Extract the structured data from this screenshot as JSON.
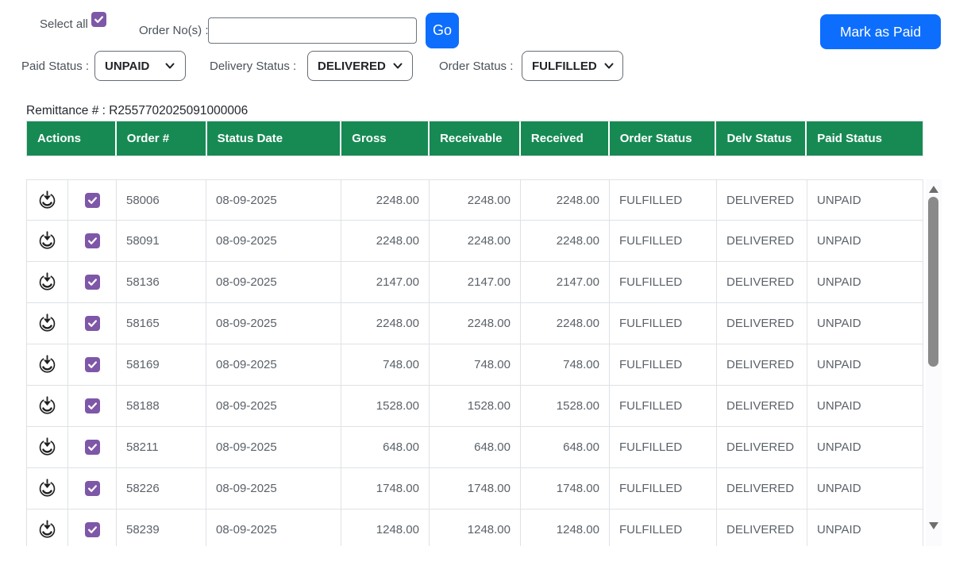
{
  "colors": {
    "header_green": "#178a53",
    "accent_purple": "#7e57a8",
    "primary_blue": "#0d6efd"
  },
  "toolbar": {
    "select_all_label": "Select all",
    "select_all_checked": true,
    "order_no_label": "Order No(s) :",
    "order_no_value": "",
    "go_label": "Go",
    "mark_paid_label": "Mark as Paid"
  },
  "filters": {
    "paid_status_label": "Paid Status :",
    "paid_status_value": "UNPAID",
    "delivery_status_label": "Delivery Status :",
    "delivery_status_value": "DELIVERED",
    "order_status_label": "Order Status :",
    "order_status_value": "FULFILLED"
  },
  "remittance_line": "Remittance # : R2557702025091000006",
  "icons": {
    "action_icon": "receive-download-icon",
    "checkbox_icon": "check-icon",
    "dropdown_icon": "chevron-down-icon",
    "scroll_up": "triangle-up-icon",
    "scroll_down": "triangle-down-icon"
  },
  "table": {
    "headers": [
      "Actions",
      "Order #",
      "Status Date",
      "Gross",
      "Receivable",
      "Received",
      "Order Status",
      "Delv Status",
      "Paid Status"
    ],
    "rows": [
      {
        "checked": true,
        "order_no": "58006",
        "status_date": "08-09-2025",
        "gross": "2248.00",
        "receivable": "2248.00",
        "received": "2248.00",
        "order_status": "FULFILLED",
        "delv_status": "DELIVERED",
        "paid_status": "UNPAID"
      },
      {
        "checked": true,
        "order_no": "58091",
        "status_date": "08-09-2025",
        "gross": "2248.00",
        "receivable": "2248.00",
        "received": "2248.00",
        "order_status": "FULFILLED",
        "delv_status": "DELIVERED",
        "paid_status": "UNPAID"
      },
      {
        "checked": true,
        "order_no": "58136",
        "status_date": "08-09-2025",
        "gross": "2147.00",
        "receivable": "2147.00",
        "received": "2147.00",
        "order_status": "FULFILLED",
        "delv_status": "DELIVERED",
        "paid_status": "UNPAID"
      },
      {
        "checked": true,
        "order_no": "58165",
        "status_date": "08-09-2025",
        "gross": "2248.00",
        "receivable": "2248.00",
        "received": "2248.00",
        "order_status": "FULFILLED",
        "delv_status": "DELIVERED",
        "paid_status": "UNPAID"
      },
      {
        "checked": true,
        "order_no": "58169",
        "status_date": "08-09-2025",
        "gross": "748.00",
        "receivable": "748.00",
        "received": "748.00",
        "order_status": "FULFILLED",
        "delv_status": "DELIVERED",
        "paid_status": "UNPAID"
      },
      {
        "checked": true,
        "order_no": "58188",
        "status_date": "08-09-2025",
        "gross": "1528.00",
        "receivable": "1528.00",
        "received": "1528.00",
        "order_status": "FULFILLED",
        "delv_status": "DELIVERED",
        "paid_status": "UNPAID"
      },
      {
        "checked": true,
        "order_no": "58211",
        "status_date": "08-09-2025",
        "gross": "648.00",
        "receivable": "648.00",
        "received": "648.00",
        "order_status": "FULFILLED",
        "delv_status": "DELIVERED",
        "paid_status": "UNPAID"
      },
      {
        "checked": true,
        "order_no": "58226",
        "status_date": "08-09-2025",
        "gross": "1748.00",
        "receivable": "1748.00",
        "received": "1748.00",
        "order_status": "FULFILLED",
        "delv_status": "DELIVERED",
        "paid_status": "UNPAID"
      },
      {
        "checked": true,
        "order_no": "58239",
        "status_date": "08-09-2025",
        "gross": "1248.00",
        "receivable": "1248.00",
        "received": "1248.00",
        "order_status": "FULFILLED",
        "delv_status": "DELIVERED",
        "paid_status": "UNPAID"
      }
    ]
  }
}
